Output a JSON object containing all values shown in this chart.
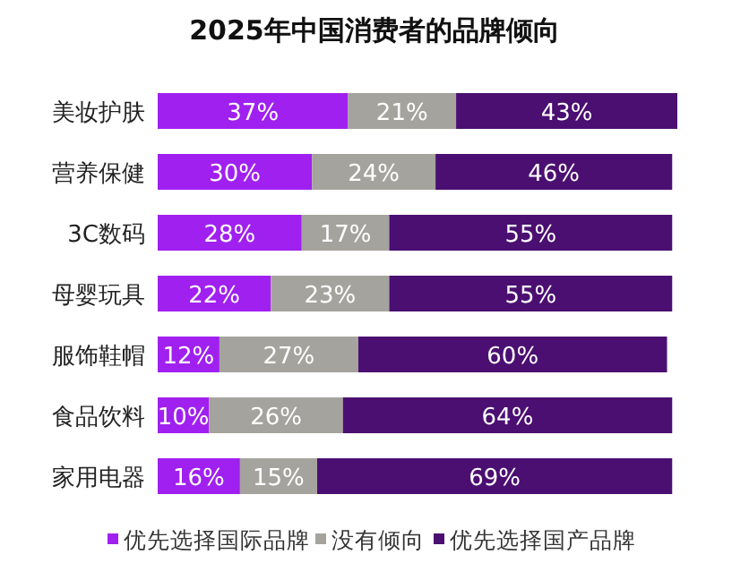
{
  "chart_data": {
    "type": "bar",
    "orientation": "horizontal",
    "stacked": true,
    "title": "2025年中国消费者的品牌倾向",
    "categories": [
      "美妆护肤",
      "营养保健",
      "3C数码",
      "母婴玩具",
      "服饰鞋帽",
      "食品饮料",
      "家用电器"
    ],
    "series": [
      {
        "name": "优先选择国际品牌",
        "color": "#a020f0",
        "values": [
          37,
          30,
          28,
          22,
          12,
          10,
          16
        ],
        "value_labels": [
          "37%",
          "30%",
          "28%",
          "22%",
          "12%",
          "10%",
          "16%"
        ]
      },
      {
        "name": "没有倾向",
        "color": "#a5a39d",
        "values": [
          21,
          24,
          17,
          23,
          27,
          26,
          15
        ],
        "value_labels": [
          "21%",
          "24%",
          "17%",
          "23%",
          "27%",
          "26%",
          "15%"
        ]
      },
      {
        "name": "优先选择国产品牌",
        "color": "#4b0f72",
        "values": [
          43,
          46,
          55,
          55,
          60,
          64,
          69
        ],
        "value_labels": [
          "43%",
          "46%",
          "55%",
          "55%",
          "60%",
          "64%",
          "69%"
        ]
      }
    ],
    "legend": "bottom"
  }
}
